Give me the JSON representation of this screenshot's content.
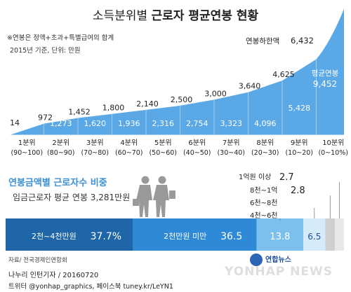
{
  "title_prefix": "소득분위별 ",
  "title_main": "근로자 평균연봉 현황",
  "note1": "※연봉은 정액+초과+특별급여의 합계",
  "note2": "2015년 기준, 단위: 만원",
  "top_gap_label": "연봉하한액",
  "avg_label": "평균연봉",
  "colors": {
    "area": "#5aa8e6",
    "area_dark": "#3b8fd8",
    "seg1": "#1f66a8",
    "seg2": "#2e8ad6",
    "seg3": "#7cc1ee",
    "seg4": "#d6ebfa",
    "seg5": "#cfcfcf",
    "seg6": "#e8e8e8"
  },
  "chart_data": [
    {
      "type": "area",
      "title": "소득분위별 근로자 평균연봉 현황",
      "categories": [
        "1분위",
        "2분위",
        "3분위",
        "4분위",
        "5분위",
        "6분위",
        "7분위",
        "8분위",
        "9분위",
        "10분위"
      ],
      "ranges": [
        "(90~100)",
        "(80~90)",
        "(70~80)",
        "(60~70)",
        "(50~60)",
        "(40~50)",
        "(30~40)",
        "(20~30)",
        "(10~20)",
        "(0~10%)"
      ],
      "series": [
        {
          "name": "연봉하한액",
          "values": [
            14,
            972,
            1452,
            1800,
            2140,
            2500,
            3000,
            3640,
            4625,
            6432
          ]
        },
        {
          "name": "평균연봉",
          "values": [
            601,
            1273,
            1620,
            1936,
            2316,
            2754,
            3323,
            4096,
            5428,
            9452
          ]
        }
      ]
    },
    {
      "type": "bar",
      "title": "연봉금액별 근로자수 비중",
      "subtitle": "임금근로자 평균 연봉 3,281만원",
      "categories": [
        "2천~4천만원",
        "2천만원 미만",
        "4천~6천",
        "6천~8천",
        "8천~1억",
        "1억원 이상"
      ],
      "values": [
        37.7,
        36.5,
        13.8,
        6.5,
        2.8,
        2.7
      ],
      "labels": [
        "2천~4천만원",
        "2천만원 미만",
        "",
        "",
        "",
        ""
      ],
      "value_labels": [
        "37.7%",
        "36.5",
        "13.8",
        "6.5",
        "",
        ""
      ]
    }
  ],
  "section2": {
    "title": "연봉금액별 근로자수 비중",
    "avg_text": "임금근로자 평균 연봉 3,281만원",
    "callouts": [
      {
        "label": "1억원 이상",
        "value": "2.7"
      },
      {
        "label": "8천~1억",
        "value": "2.8"
      },
      {
        "label": "6천~8천",
        "value": ""
      },
      {
        "label": "4천~6천",
        "value": ""
      }
    ]
  },
  "source": "자료/ 전국경제인연합회",
  "logo": "연합뉴스",
  "watermark": "YONHAP NEWS",
  "byline1": "나누리 인턴기자 / 20160720",
  "byline2": "트위터 @yonhap_graphics, 페이스북 tuney.kr/LeYN1"
}
